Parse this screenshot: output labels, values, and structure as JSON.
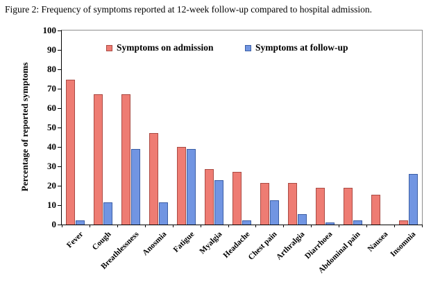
{
  "figure_caption": "Figure 2: Frequency of symptoms reported at 12-week follow-up compared to hospital admission.",
  "chart_data": {
    "type": "bar",
    "title": "Figure 2: Frequency of symptoms reported at 12-week follow-up compared to hospital admission.",
    "categories": [
      "Fever",
      "Cough",
      "Breathlessness",
      "Anosmia",
      "Fatigue",
      "Myalgia",
      "Headache",
      "Chest pain",
      "Arthralgia",
      "Diarrhoea",
      "Abdominal pain",
      "Nausea",
      "Insomnia"
    ],
    "series": [
      {
        "name": "Symptoms on admission",
        "fill_color": "#ee7c73",
        "border_color": "#aa4a43",
        "values": [
          74.5,
          67,
          67,
          47,
          40,
          28.5,
          27,
          21.5,
          21.5,
          19,
          19,
          15.5,
          2
        ]
      },
      {
        "name": "Symptoms at follow-up",
        "fill_color": "#7195e2",
        "border_color": "#3b5ea5",
        "values": [
          2,
          11.5,
          39,
          11.5,
          39,
          23,
          2,
          12.5,
          5.5,
          1,
          2,
          0,
          26
        ]
      }
    ],
    "xlabel": "",
    "ylabel": "Percentage of reported symptoms",
    "ylim": [
      0,
      100
    ],
    "ytick_step": 10,
    "grid": false,
    "legend_position": "top-inside",
    "frame_color": "#8c8c8c",
    "axis_color": "#000000"
  }
}
